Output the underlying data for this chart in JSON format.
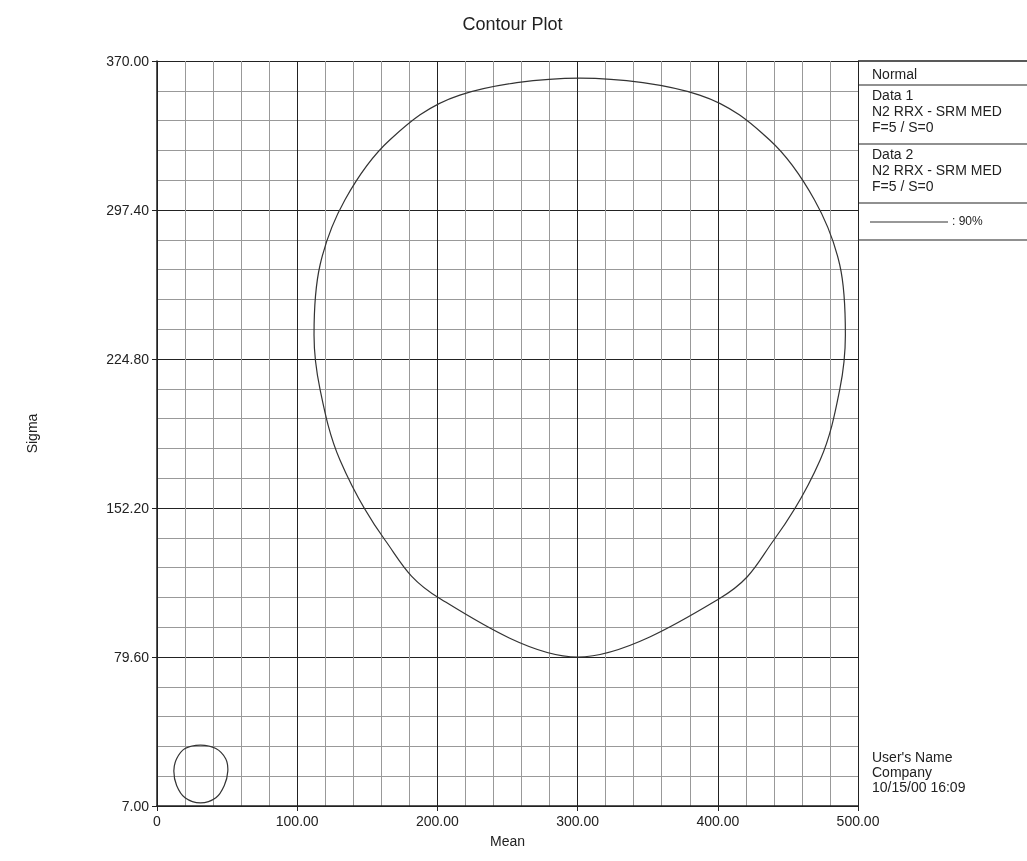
{
  "chart_data": {
    "type": "line",
    "title": "Contour Plot",
    "xlabel": "Mean",
    "ylabel": "Sigma",
    "xlim": [
      0,
      500
    ],
    "ylim": [
      7,
      370
    ],
    "xticks": [
      {
        "value": 0,
        "label": "0"
      },
      {
        "value": 100,
        "label": "100.00"
      },
      {
        "value": 200,
        "label": "200.00"
      },
      {
        "value": 300,
        "label": "300.00"
      },
      {
        "value": 400,
        "label": "400.00"
      },
      {
        "value": 500,
        "label": "500.00"
      }
    ],
    "yticks": [
      {
        "value": 7,
        "label": "7.00"
      },
      {
        "value": 79.6,
        "label": "79.60"
      },
      {
        "value": 152.2,
        "label": "152.20"
      },
      {
        "value": 224.8,
        "label": "224.80"
      },
      {
        "value": 297.4,
        "label": "297.40"
      },
      {
        "value": 370,
        "label": "370.00"
      }
    ],
    "grid": true,
    "annotations": [
      "Normal",
      "Data 1",
      "N2 RRX - SRM MED",
      "F=5 / S=0",
      "Data 2",
      "N2 RRX - SRM MED",
      "F=5 / S=0",
      ": 90%",
      "User's Name",
      "Company",
      "10/15/00 16:09"
    ]
  }
}
